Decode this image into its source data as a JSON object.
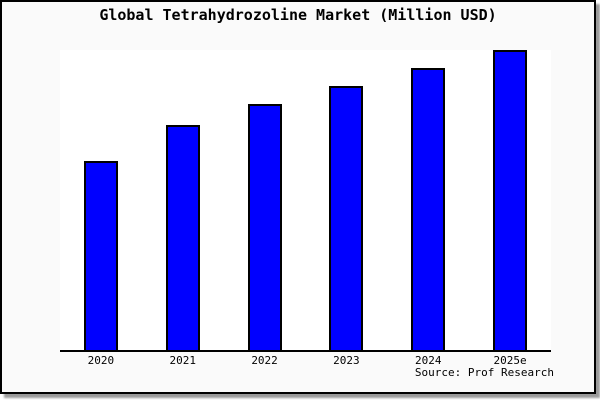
{
  "window": {
    "background": "#fafafa",
    "border_color": "#000000",
    "shadow_color": "#999999"
  },
  "chart_data": {
    "type": "bar",
    "title": "Global Tetrahydrozoline Market (Million USD)",
    "categories": [
      "2020",
      "2021",
      "2022",
      "2023",
      "2024",
      "2025e"
    ],
    "values_relative_pct": [
      63,
      75,
      82,
      88,
      94,
      100
    ],
    "y_axis_visible": false,
    "value_labels_visible": false,
    "xlabel": "",
    "ylabel": "",
    "legend": "none",
    "grid": false,
    "bar_color": "#0000ff",
    "bar_border_color": "#000000",
    "plot_background": "#ffffff",
    "axis_line_color": "#000000"
  },
  "footer": {
    "source_label": "Source: Prof Research"
  }
}
